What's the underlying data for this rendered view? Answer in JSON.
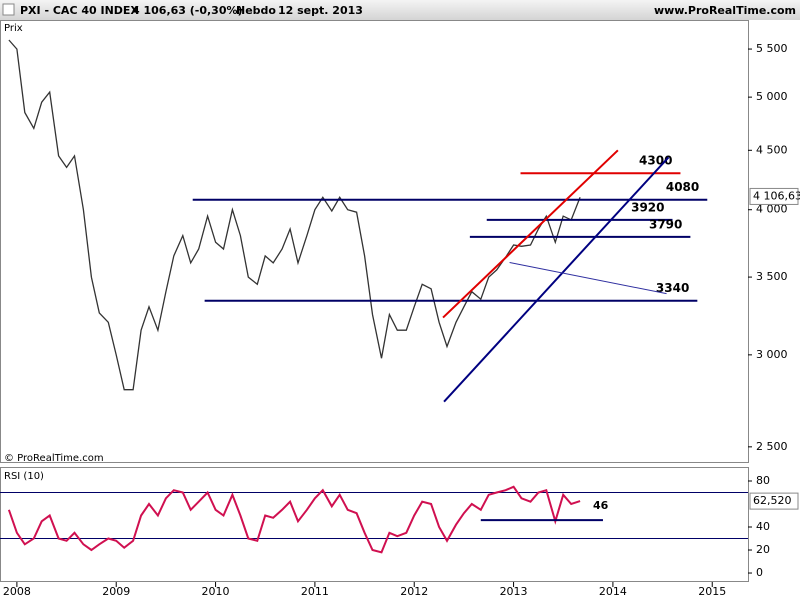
{
  "chart_data": {
    "type": "line",
    "title": "PXI - CAC 40 INDEX",
    "change": "4 106,63 (-0,30%)",
    "period": "Hebdo",
    "date": "12 sept. 2013",
    "source": "www.ProRealTime.com",
    "copyright": "© ProRealTime.com",
    "y_label": "Prix",
    "x": [
      2007.92,
      2008.0,
      2008.08,
      2008.17,
      2008.25,
      2008.33,
      2008.42,
      2008.5,
      2008.58,
      2008.67,
      2008.75,
      2008.83,
      2008.92,
      2009.0,
      2009.08,
      2009.17,
      2009.25,
      2009.33,
      2009.42,
      2009.5,
      2009.58,
      2009.67,
      2009.75,
      2009.83,
      2009.92,
      2010.0,
      2010.08,
      2010.17,
      2010.25,
      2010.33,
      2010.42,
      2010.5,
      2010.58,
      2010.67,
      2010.75,
      2010.83,
      2010.92,
      2011.0,
      2011.08,
      2011.17,
      2011.25,
      2011.33,
      2011.42,
      2011.5,
      2011.58,
      2011.67,
      2011.75,
      2011.83,
      2011.92,
      2012.0,
      2012.08,
      2012.17,
      2012.25,
      2012.33,
      2012.42,
      2012.5,
      2012.58,
      2012.67,
      2012.75,
      2012.83,
      2012.92,
      2013.0,
      2013.08,
      2013.17,
      2013.25,
      2013.33,
      2013.42,
      2013.5,
      2013.58,
      2013.67
    ],
    "xlim": [
      2007.83,
      2015.36
    ],
    "xticks": [
      2008,
      2009,
      2010,
      2011,
      2012,
      2013,
      2014,
      2015
    ],
    "log_scale": true,
    "ylim": [
      2426,
      5826
    ],
    "yticks": [
      {
        "value": 2500,
        "label": "2 500"
      },
      {
        "value": 3000,
        "label": "3 000"
      },
      {
        "value": 3500,
        "label": "3 500"
      },
      {
        "value": 4000,
        "label": "4 000"
      },
      {
        "value": 4500,
        "label": "4 500"
      },
      {
        "value": 5000,
        "label": "5 000"
      },
      {
        "value": 5500,
        "label": "5 500"
      }
    ],
    "series": [
      {
        "color": "#333333",
        "values": [
          5600,
          5500,
          4850,
          4700,
          4950,
          5050,
          4450,
          4350,
          4450,
          4000,
          3500,
          3260,
          3200,
          3000,
          2800,
          2800,
          3150,
          3300,
          3150,
          3400,
          3650,
          3800,
          3600,
          3700,
          3950,
          3750,
          3700,
          4000,
          3800,
          3500,
          3450,
          3650,
          3600,
          3700,
          3850,
          3600,
          3800,
          4000,
          4100,
          3990,
          4100,
          4000,
          3980,
          3650,
          3250,
          2980,
          3250,
          3150,
          3150,
          3300,
          3450,
          3420,
          3200,
          3050,
          3200,
          3300,
          3400,
          3350,
          3500,
          3550,
          3640,
          3730,
          3720,
          3730,
          3850,
          3950,
          3750,
          3950,
          3920,
          4100
        ]
      }
    ],
    "last_value": {
      "value": 4106.63,
      "label": "4 106,63"
    },
    "levels": [
      {
        "value": 4300,
        "from": 2013.07,
        "to": 2014.68,
        "color": "#e00000"
      },
      {
        "value": 4080,
        "from": 2009.77,
        "to": 2014.95,
        "color": "#000066"
      },
      {
        "value": 3920,
        "from": 2012.73,
        "to": 2014.6,
        "color": "#000066"
      },
      {
        "value": 3790,
        "from": 2012.56,
        "to": 2014.78,
        "color": "#000066"
      },
      {
        "value": 3340,
        "from": 2009.89,
        "to": 2014.85,
        "color": "#000066"
      }
    ],
    "trendlines": [
      {
        "x": [
          2012.29,
          2014.05
        ],
        "y": [
          3230,
          4500
        ],
        "color": "#e00000"
      },
      {
        "x": [
          2012.3,
          2014.56
        ],
        "y": [
          2734,
          4438
        ],
        "color": "#000080"
      },
      {
        "x": [
          2012.96,
          2014.54
        ],
        "y": [
          3603,
          3387
        ],
        "color": "#3030a0"
      }
    ],
    "rsi": {
      "title": "RSI (10)",
      "color": "#d01050",
      "values": [
        55,
        35,
        25,
        30,
        45,
        50,
        30,
        28,
        35,
        25,
        20,
        25,
        30,
        28,
        22,
        28,
        50,
        60,
        50,
        65,
        72,
        70,
        55,
        62,
        70,
        55,
        50,
        68,
        50,
        30,
        28,
        50,
        48,
        55,
        62,
        45,
        55,
        65,
        72,
        58,
        68,
        55,
        52,
        35,
        20,
        18,
        35,
        32,
        35,
        50,
        62,
        60,
        40,
        28,
        42,
        52,
        60,
        55,
        68,
        70,
        72,
        75,
        65,
        62,
        70,
        72,
        45,
        68,
        60,
        62.52
      ],
      "ylim": [
        -7.8,
        91.3
      ],
      "yticks": [
        0,
        20,
        40,
        80
      ],
      "bands": [
        70,
        30
      ],
      "band_color": "#000066",
      "last_value": {
        "value": 62.52,
        "label": "62,520"
      },
      "level": {
        "value": 46,
        "from": 2012.67,
        "to": 2013.9
      }
    }
  }
}
